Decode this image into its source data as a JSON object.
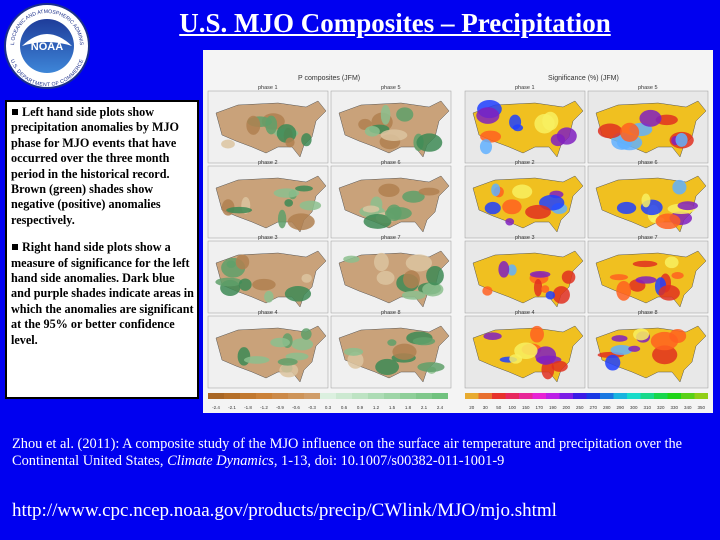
{
  "logo": {
    "text": "NOAA",
    "ring_top": "NATIONAL OCEANIC AND ATMOSPHERIC ADMINISTRATION",
    "ring_bottom": "U.S. DEPARTMENT OF COMMERCE"
  },
  "header": {
    "title": "U.S. MJO Composites – Precipitation"
  },
  "bullets": [
    "Left hand side plots show precipitation anomalies by MJO phase for MJO events that have occurred over the three month period in the historical record. Brown (green) shades show negative (positive) anomalies respectively.",
    "Right hand side plots show a measure of significance for the left hand side anomalies. Dark blue and purple shades indicate areas in which the anomalies are significant at the 95% or better confidence level."
  ],
  "figure": {
    "left_title": "P composites (JFM)",
    "right_title": "Significance (%) (JFM)",
    "left_panels": [
      [
        "phase 1",
        "phase 5"
      ],
      [
        "phase 2",
        "phase 6"
      ],
      [
        "phase 3",
        "phase 7"
      ],
      [
        "phase 4",
        "phase 8"
      ]
    ],
    "right_panels": [
      [
        "phase 1",
        "phase 5"
      ],
      [
        "phase 2",
        "phase 6"
      ],
      [
        "phase 3",
        "phase 7"
      ],
      [
        "phase 4",
        "phase 8"
      ]
    ],
    "left_colorbar": [
      "-2.4",
      "-2.1",
      "-1.8",
      "-1.2",
      "-0.9",
      "-0.6",
      "-0.3",
      "0.3",
      "0.6",
      "0.9",
      "1.2",
      "1.5",
      "1.8",
      "2.1",
      "2.4"
    ],
    "right_colorbar": [
      "20",
      "30",
      "50",
      "100",
      "150",
      "170",
      "190",
      "200",
      "250",
      "270",
      "280",
      "290",
      "300",
      "310",
      "320",
      "330",
      "340",
      "350"
    ]
  },
  "citation": {
    "before": "Zhou et al. (2011): A composite study of the MJO influence on the surface air temperature and precipitation over the Continental United States, ",
    "journal": "Climate Dynamics",
    "after": ", 1-13, doi: 10.1007/s00382-011-1001-9"
  },
  "url": "http://www.cpc.ncep.noaa.gov/products/precip/CWlink/MJO/mjo.shtml"
}
